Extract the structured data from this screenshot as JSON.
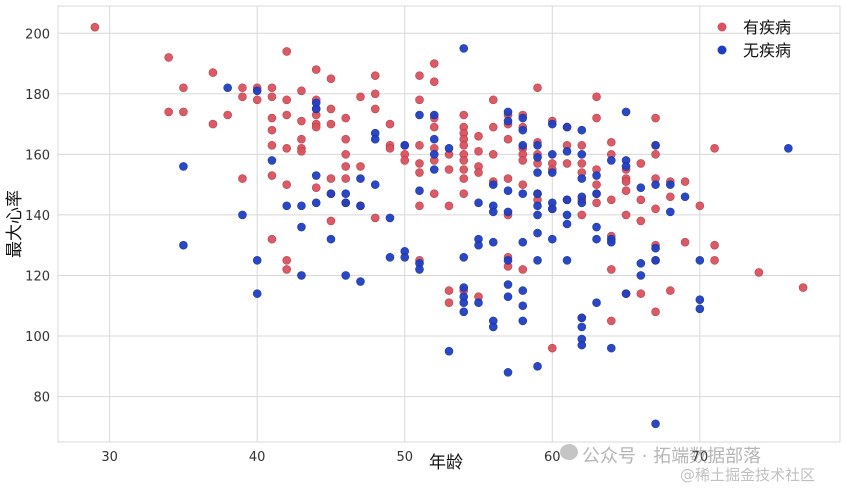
{
  "chart_data": {
    "type": "scatter",
    "xlabel": "年龄",
    "ylabel": "最大心率",
    "xlim": [
      26.5,
      79.5
    ],
    "ylim": [
      65,
      209
    ],
    "xticks": [
      30,
      40,
      50,
      60,
      70
    ],
    "yticks": [
      80,
      100,
      120,
      140,
      160,
      180,
      200
    ],
    "grid": true,
    "legend_position": "top-right",
    "series": [
      {
        "name": "有疾病",
        "color": "#d9525e",
        "points": [
          [
            29,
            202
          ],
          [
            34,
            192
          ],
          [
            34,
            174
          ],
          [
            35,
            182
          ],
          [
            35,
            174
          ],
          [
            37,
            187
          ],
          [
            37,
            170
          ],
          [
            38,
            173
          ],
          [
            39,
            182
          ],
          [
            39,
            179
          ],
          [
            39,
            152
          ],
          [
            40,
            182
          ],
          [
            40,
            178
          ],
          [
            41,
            182
          ],
          [
            41,
            179
          ],
          [
            41,
            172
          ],
          [
            41,
            168
          ],
          [
            41,
            163
          ],
          [
            41,
            153
          ],
          [
            41,
            132
          ],
          [
            42,
            194
          ],
          [
            42,
            178
          ],
          [
            42,
            173
          ],
          [
            42,
            162
          ],
          [
            42,
            150
          ],
          [
            42,
            125
          ],
          [
            42,
            122
          ],
          [
            43,
            181
          ],
          [
            43,
            171
          ],
          [
            43,
            165
          ],
          [
            43,
            162
          ],
          [
            43,
            161
          ],
          [
            44,
            188
          ],
          [
            44,
            178
          ],
          [
            44,
            175
          ],
          [
            44,
            173
          ],
          [
            44,
            170
          ],
          [
            44,
            169
          ],
          [
            44,
            149
          ],
          [
            45,
            185
          ],
          [
            45,
            175
          ],
          [
            45,
            170
          ],
          [
            45,
            152
          ],
          [
            45,
            147
          ],
          [
            45,
            138
          ],
          [
            46,
            172
          ],
          [
            46,
            165
          ],
          [
            46,
            160
          ],
          [
            46,
            156
          ],
          [
            46,
            152
          ],
          [
            46,
            144
          ],
          [
            47,
            179
          ],
          [
            47,
            156
          ],
          [
            47,
            143
          ],
          [
            48,
            186
          ],
          [
            48,
            180
          ],
          [
            48,
            175
          ],
          [
            48,
            139
          ],
          [
            49,
            170
          ],
          [
            49,
            163
          ],
          [
            49,
            162
          ],
          [
            50,
            163
          ],
          [
            50,
            160
          ],
          [
            50,
            158
          ],
          [
            51,
            186
          ],
          [
            51,
            178
          ],
          [
            51,
            163
          ],
          [
            51,
            157
          ],
          [
            51,
            154
          ],
          [
            51,
            143
          ],
          [
            51,
            125
          ],
          [
            52,
            190
          ],
          [
            52,
            184
          ],
          [
            52,
            172
          ],
          [
            52,
            169
          ],
          [
            52,
            162
          ],
          [
            52,
            158
          ],
          [
            52,
            147
          ],
          [
            53,
            160
          ],
          [
            53,
            155
          ],
          [
            53,
            143
          ],
          [
            53,
            115
          ],
          [
            53,
            111
          ],
          [
            54,
            173
          ],
          [
            54,
            169
          ],
          [
            54,
            167
          ],
          [
            54,
            165
          ],
          [
            54,
            163
          ],
          [
            54,
            160
          ],
          [
            54,
            158
          ],
          [
            54,
            155
          ],
          [
            54,
            152
          ],
          [
            54,
            147
          ],
          [
            54,
            115
          ],
          [
            55,
            166
          ],
          [
            55,
            161
          ],
          [
            55,
            156
          ],
          [
            55,
            154
          ],
          [
            55,
            113
          ],
          [
            56,
            178
          ],
          [
            56,
            169
          ],
          [
            56,
            160
          ],
          [
            56,
            151
          ],
          [
            57,
            173
          ],
          [
            57,
            170
          ],
          [
            57,
            165
          ],
          [
            57,
            152
          ],
          [
            57,
            140
          ],
          [
            57,
            126
          ],
          [
            57,
            123
          ],
          [
            58,
            173
          ],
          [
            58,
            169
          ],
          [
            58,
            162
          ],
          [
            58,
            160
          ],
          [
            58,
            158
          ],
          [
            58,
            150
          ],
          [
            58,
            122
          ],
          [
            59,
            182
          ],
          [
            59,
            164
          ],
          [
            59,
            160
          ],
          [
            59,
            157
          ],
          [
            59,
            147
          ],
          [
            59,
            145
          ],
          [
            60,
            171
          ],
          [
            60,
            157
          ],
          [
            60,
            155
          ],
          [
            60,
            142
          ],
          [
            60,
            96
          ],
          [
            61,
            169
          ],
          [
            61,
            163
          ],
          [
            61,
            157
          ],
          [
            61,
            145
          ],
          [
            62,
            163
          ],
          [
            62,
            157
          ],
          [
            62,
            154
          ],
          [
            62,
            145
          ],
          [
            62,
            140
          ],
          [
            62,
            106
          ],
          [
            63,
            179
          ],
          [
            63,
            172
          ],
          [
            63,
            155
          ],
          [
            63,
            150
          ],
          [
            63,
            147
          ],
          [
            63,
            144
          ],
          [
            64,
            164
          ],
          [
            64,
            160
          ],
          [
            64,
            145
          ],
          [
            64,
            133
          ],
          [
            64,
            122
          ],
          [
            64,
            105
          ],
          [
            65,
            155
          ],
          [
            65,
            152
          ],
          [
            65,
            151
          ],
          [
            65,
            148
          ],
          [
            65,
            140
          ],
          [
            65,
            114
          ],
          [
            66,
            157
          ],
          [
            66,
            145
          ],
          [
            66,
            138
          ],
          [
            66,
            114
          ],
          [
            67,
            172
          ],
          [
            67,
            163
          ],
          [
            67,
            160
          ],
          [
            67,
            152
          ],
          [
            67,
            142
          ],
          [
            67,
            130
          ],
          [
            67,
            125
          ],
          [
            67,
            108
          ],
          [
            68,
            151
          ],
          [
            68,
            146
          ],
          [
            68,
            115
          ],
          [
            69,
            151
          ],
          [
            69,
            131
          ],
          [
            70,
            143
          ],
          [
            71,
            162
          ],
          [
            71,
            130
          ],
          [
            71,
            125
          ],
          [
            74,
            121
          ],
          [
            77,
            116
          ]
        ]
      },
      {
        "name": "无疾病",
        "color": "#1f3fc2",
        "points": [
          [
            35,
            156
          ],
          [
            35,
            130
          ],
          [
            38,
            182
          ],
          [
            39,
            140
          ],
          [
            40,
            181
          ],
          [
            40,
            125
          ],
          [
            40,
            114
          ],
          [
            41,
            158
          ],
          [
            42,
            143
          ],
          [
            43,
            143
          ],
          [
            43,
            136
          ],
          [
            43,
            120
          ],
          [
            44,
            177
          ],
          [
            44,
            175
          ],
          [
            44,
            153
          ],
          [
            44,
            144
          ],
          [
            45,
            147
          ],
          [
            45,
            132
          ],
          [
            46,
            147
          ],
          [
            46,
            144
          ],
          [
            46,
            120
          ],
          [
            47,
            152
          ],
          [
            47,
            143
          ],
          [
            47,
            118
          ],
          [
            48,
            167
          ],
          [
            48,
            165
          ],
          [
            48,
            150
          ],
          [
            49,
            139
          ],
          [
            49,
            126
          ],
          [
            50,
            163
          ],
          [
            50,
            128
          ],
          [
            50,
            126
          ],
          [
            51,
            173
          ],
          [
            51,
            148
          ],
          [
            51,
            124
          ],
          [
            51,
            122
          ],
          [
            52,
            173
          ],
          [
            52,
            165
          ],
          [
            52,
            160
          ],
          [
            52,
            155
          ],
          [
            53,
            162
          ],
          [
            53,
            95
          ],
          [
            54,
            195
          ],
          [
            54,
            126
          ],
          [
            54,
            116
          ],
          [
            54,
            113
          ],
          [
            54,
            111
          ],
          [
            54,
            108
          ],
          [
            55,
            144
          ],
          [
            55,
            132
          ],
          [
            55,
            130
          ],
          [
            55,
            111
          ],
          [
            56,
            150
          ],
          [
            56,
            143
          ],
          [
            56,
            141
          ],
          [
            56,
            131
          ],
          [
            56,
            105
          ],
          [
            56,
            103
          ],
          [
            57,
            174
          ],
          [
            57,
            171
          ],
          [
            57,
            148
          ],
          [
            57,
            141
          ],
          [
            57,
            125
          ],
          [
            57,
            117
          ],
          [
            57,
            113
          ],
          [
            57,
            88
          ],
          [
            58,
            172
          ],
          [
            58,
            168
          ],
          [
            58,
            163
          ],
          [
            58,
            147
          ],
          [
            58,
            131
          ],
          [
            58,
            115
          ],
          [
            58,
            110
          ],
          [
            58,
            105
          ],
          [
            59,
            163
          ],
          [
            59,
            159
          ],
          [
            59,
            154
          ],
          [
            59,
            147
          ],
          [
            59,
            143
          ],
          [
            59,
            140
          ],
          [
            59,
            134
          ],
          [
            59,
            125
          ],
          [
            59,
            90
          ],
          [
            60,
            170
          ],
          [
            60,
            160
          ],
          [
            60,
            154
          ],
          [
            60,
            144
          ],
          [
            60,
            142
          ],
          [
            60,
            132
          ],
          [
            61,
            169
          ],
          [
            61,
            161
          ],
          [
            61,
            145
          ],
          [
            61,
            140
          ],
          [
            61,
            137
          ],
          [
            61,
            125
          ],
          [
            62,
            168
          ],
          [
            62,
            160
          ],
          [
            62,
            152
          ],
          [
            62,
            146
          ],
          [
            62,
            144
          ],
          [
            62,
            106
          ],
          [
            62,
            103
          ],
          [
            62,
            99
          ],
          [
            62,
            97
          ],
          [
            63,
            153
          ],
          [
            63,
            147
          ],
          [
            63,
            136
          ],
          [
            63,
            132
          ],
          [
            63,
            111
          ],
          [
            64,
            158
          ],
          [
            64,
            132
          ],
          [
            64,
            131
          ],
          [
            64,
            96
          ],
          [
            65,
            174
          ],
          [
            65,
            158
          ],
          [
            65,
            156
          ],
          [
            65,
            114
          ],
          [
            66,
            149
          ],
          [
            66,
            124
          ],
          [
            66,
            120
          ],
          [
            67,
            163
          ],
          [
            67,
            150
          ],
          [
            67,
            129
          ],
          [
            67,
            125
          ],
          [
            67,
            71
          ],
          [
            68,
            150
          ],
          [
            68,
            141
          ],
          [
            69,
            146
          ],
          [
            70,
            125
          ],
          [
            70,
            112
          ],
          [
            70,
            109
          ],
          [
            76,
            162
          ]
        ]
      }
    ]
  },
  "watermark": {
    "line1": "公众号 · 拓端数据部落",
    "line2": "@稀土掘金技术社区"
  }
}
